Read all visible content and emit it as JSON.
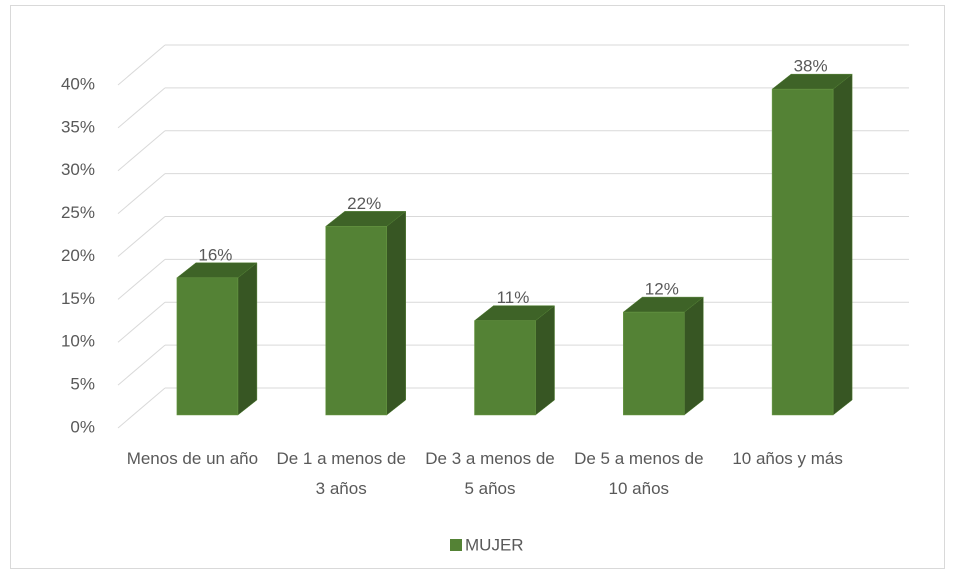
{
  "chart_data": {
    "type": "bar3d",
    "categories": [
      "Menos de un año",
      "De 1 a menos de 3 años",
      "De 3 a menos de 5 años",
      "De 5 a menos de 10 años",
      "10 años y más"
    ],
    "series": [
      {
        "name": "MUJER",
        "color": "#548235",
        "values": [
          16,
          22,
          11,
          12,
          38
        ],
        "value_labels": [
          "16%",
          "22%",
          "11%",
          "12%",
          "38%"
        ]
      }
    ],
    "ylim": [
      0,
      40
    ],
    "yticks": [
      {
        "value": 0,
        "label": "0%"
      },
      {
        "value": 5,
        "label": "5%"
      },
      {
        "value": 10,
        "label": "10%"
      },
      {
        "value": 15,
        "label": "15%"
      },
      {
        "value": 20,
        "label": "20%"
      },
      {
        "value": 25,
        "label": "25%"
      },
      {
        "value": 30,
        "label": "30%"
      },
      {
        "value": 35,
        "label": "35%"
      },
      {
        "value": 40,
        "label": "40%"
      }
    ],
    "grid": true,
    "legend": "bottom"
  }
}
